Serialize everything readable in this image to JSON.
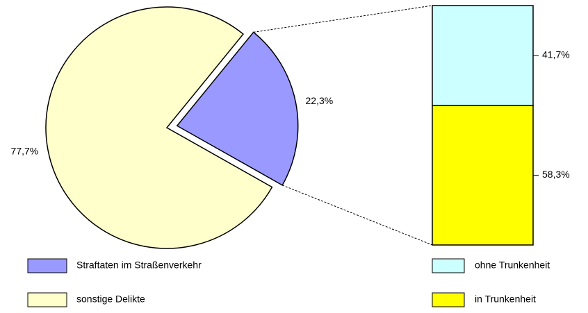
{
  "chart_data": [
    {
      "type": "pie",
      "categories": [
        "Straftaten im Straßenverkehr",
        "sonstige Delikte"
      ],
      "values": [
        22.3,
        77.7
      ],
      "value_labels": [
        "22,3%",
        "77,7%"
      ],
      "colors": [
        "#9999ff",
        "#ffffcc"
      ]
    },
    {
      "type": "stacked-bar",
      "categories": [
        "ohne Trunkenheit",
        "in Trunkenheit"
      ],
      "values": [
        41.7,
        58.3
      ],
      "value_labels": [
        "41,7%",
        "58,3%"
      ],
      "colors": [
        "#ccffff",
        "#ffff00"
      ]
    }
  ]
}
